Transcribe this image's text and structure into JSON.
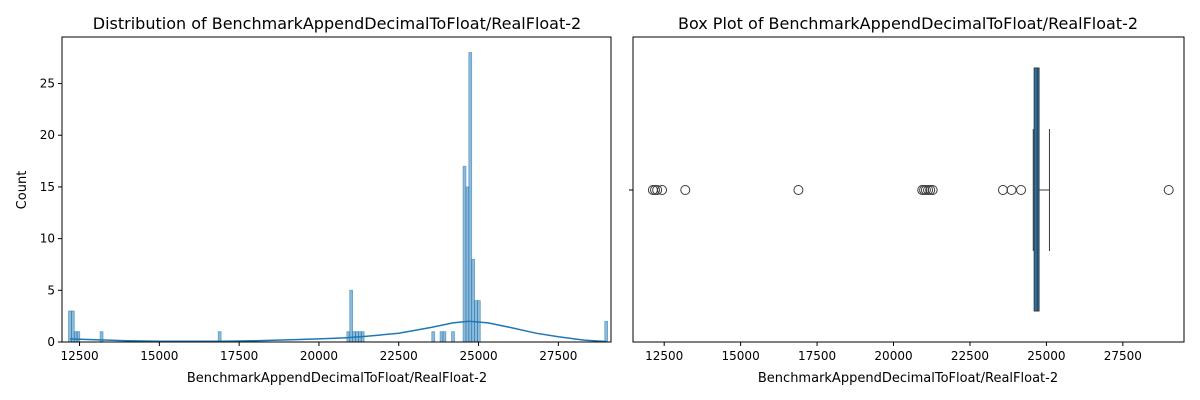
{
  "chart_data": [
    {
      "type": "histogram",
      "title": "Distribution of BenchmarkAppendDecimalToFloat/RealFloat-2",
      "xlabel": "BenchmarkAppendDecimalToFloat/RealFloat-2",
      "ylabel": "Count",
      "xlim": [
        11950,
        29150
      ],
      "ylim": [
        0,
        29.5
      ],
      "x_ticks": [
        12500,
        15000,
        17500,
        20000,
        22500,
        25000,
        27500
      ],
      "x_tick_labels": [
        "12500",
        "15000",
        "17500",
        "20000",
        "22500",
        "25000",
        "27500"
      ],
      "y_ticks": [
        0,
        5,
        10,
        15,
        20,
        25
      ],
      "y_tick_labels": [
        "0",
        "5",
        "10",
        "15",
        "20",
        "25"
      ],
      "bar_color": "#1f77b4",
      "bins": [
        {
          "x": 12200,
          "count": 3
        },
        {
          "x": 12290,
          "count": 3
        },
        {
          "x": 12380,
          "count": 1
        },
        {
          "x": 12460,
          "count": 1
        },
        {
          "x": 13190,
          "count": 1
        },
        {
          "x": 16890,
          "count": 1
        },
        {
          "x": 20920,
          "count": 1
        },
        {
          "x": 21010,
          "count": 5
        },
        {
          "x": 21100,
          "count": 1
        },
        {
          "x": 21190,
          "count": 1
        },
        {
          "x": 21280,
          "count": 1
        },
        {
          "x": 21370,
          "count": 1
        },
        {
          "x": 23580,
          "count": 1
        },
        {
          "x": 23840,
          "count": 1
        },
        {
          "x": 23930,
          "count": 1
        },
        {
          "x": 24200,
          "count": 1
        },
        {
          "x": 24560,
          "count": 17
        },
        {
          "x": 24650,
          "count": 15
        },
        {
          "x": 24740,
          "count": 28
        },
        {
          "x": 24830,
          "count": 8
        },
        {
          "x": 24920,
          "count": 4
        },
        {
          "x": 25010,
          "count": 4
        },
        {
          "x": 29000,
          "count": 2
        }
      ],
      "kde": {
        "color": "#1f77b4",
        "points": [
          [
            12200,
            0.3
          ],
          [
            13000,
            0.22
          ],
          [
            14000,
            0.12
          ],
          [
            15000,
            0.08
          ],
          [
            16000,
            0.07
          ],
          [
            17000,
            0.08
          ],
          [
            18000,
            0.12
          ],
          [
            19000,
            0.2
          ],
          [
            20000,
            0.3
          ],
          [
            20800,
            0.4
          ],
          [
            21500,
            0.55
          ],
          [
            22500,
            0.85
          ],
          [
            23500,
            1.4
          ],
          [
            24200,
            1.85
          ],
          [
            24700,
            2.0
          ],
          [
            25300,
            1.85
          ],
          [
            26000,
            1.4
          ],
          [
            26800,
            0.85
          ],
          [
            27500,
            0.5
          ],
          [
            28300,
            0.18
          ],
          [
            29000,
            0.05
          ]
        ]
      }
    },
    {
      "type": "box",
      "title": "Box Plot of BenchmarkAppendDecimalToFloat/RealFloat-2",
      "xlabel": "BenchmarkAppendDecimalToFloat/RealFloat-2",
      "xlim": [
        11480,
        29500
      ],
      "x_ticks": [
        12500,
        15000,
        17500,
        20000,
        22500,
        25000,
        27500
      ],
      "x_tick_labels": [
        "12500",
        "15000",
        "17500",
        "20000",
        "22500",
        "25000",
        "27500"
      ],
      "box_color": "#1f77b4",
      "q1": 24600,
      "median": 24700,
      "q3": 24760,
      "whisker_low": 24570,
      "whisker_high": 25100,
      "outliers": [
        12130,
        12200,
        12270,
        12430,
        13190,
        16890,
        20940,
        21000,
        21060,
        21130,
        21200,
        21280,
        23580,
        23860,
        24170,
        29000
      ]
    }
  ]
}
